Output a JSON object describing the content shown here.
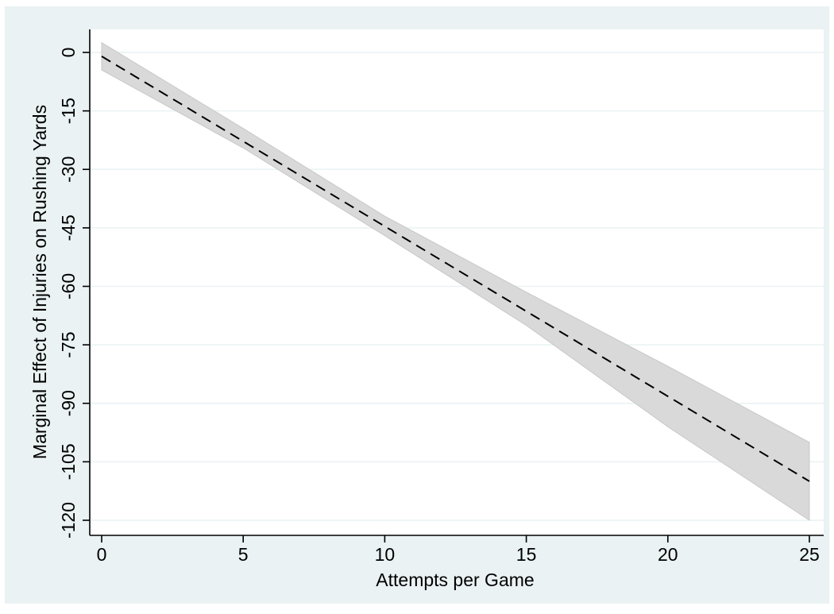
{
  "chart_data": {
    "type": "line",
    "title": "",
    "xlabel": "Attempts per Game",
    "ylabel": "Marginal Effect of Injuries on Rushing Yards",
    "xlim": [
      0,
      25
    ],
    "ylim": [
      -120,
      0
    ],
    "x_ticks": [
      0,
      5,
      10,
      15,
      20,
      25
    ],
    "y_ticks": [
      0,
      -15,
      -30,
      -45,
      -60,
      -75,
      -90,
      -105,
      -120
    ],
    "grid": true,
    "legend": "none",
    "series": [
      {
        "style": "dashed-line",
        "x": [
          0,
          25
        ],
        "y": [
          -1,
          -110
        ]
      }
    ],
    "confidence_band": {
      "x": [
        0,
        5,
        10,
        15,
        20,
        25
      ],
      "upper": [
        2.5,
        -19.5,
        -42,
        -61.5,
        -80.5,
        -100
      ],
      "lower": [
        -4.5,
        -24.5,
        -47,
        -70,
        -96,
        -120
      ]
    },
    "colors": {
      "outer_background": "#EAF2F3",
      "plot_background": "#FFFFFF",
      "grid": "#EAF2F3",
      "band_fill": "#D9D9D9",
      "band_edge": "#C8C8C8",
      "line": "#000000",
      "axis": "#000000"
    }
  }
}
